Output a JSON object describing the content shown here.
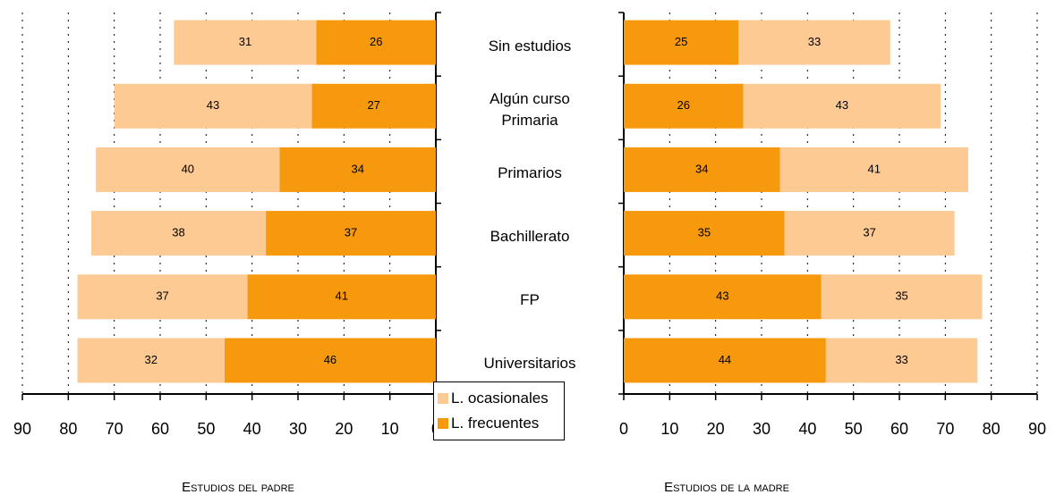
{
  "chart_data": {
    "type": "bar",
    "horizontal": true,
    "stacked": true,
    "categories": [
      "Sin estudios",
      "Algún curso Primaria",
      "Primarios",
      "Bachillerato",
      "FP",
      "Universitarios"
    ],
    "series": [
      {
        "name": "L. frecuentes",
        "color": "#f7990c"
      },
      {
        "name": "L. ocasionales",
        "color": "#fdca93"
      }
    ],
    "grid": true,
    "legend": "bottom-center",
    "panels": [
      {
        "title": "Estudios del padre",
        "reversed": true,
        "xlim": [
          0,
          90
        ],
        "xticks": [
          0,
          10,
          20,
          30,
          40,
          50,
          60,
          70,
          80,
          90
        ],
        "values": [
          [
            26,
            27,
            34,
            37,
            41,
            46
          ],
          [
            31,
            43,
            40,
            38,
            37,
            32
          ]
        ]
      },
      {
        "title": "Estudios de la madre",
        "reversed": false,
        "xlim": [
          0,
          90
        ],
        "xticks": [
          0,
          10,
          20,
          30,
          40,
          50,
          60,
          70,
          80,
          90
        ],
        "values": [
          [
            25,
            26,
            34,
            35,
            43,
            44
          ],
          [
            33,
            43,
            41,
            37,
            35,
            33
          ]
        ]
      }
    ]
  }
}
